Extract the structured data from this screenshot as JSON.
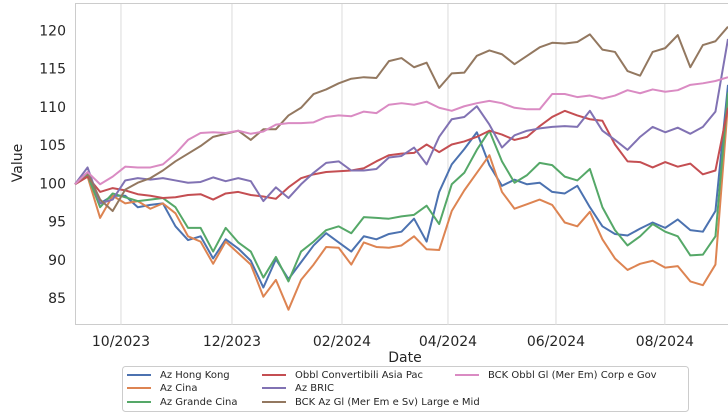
{
  "chart_data": {
    "type": "line",
    "xlabel": "Date",
    "ylabel": "Value",
    "x": [
      0,
      1,
      2,
      3,
      4,
      5,
      6,
      7,
      8,
      9,
      10,
      11,
      12,
      13,
      14,
      15,
      16,
      17,
      18,
      19,
      20,
      21,
      22,
      23,
      24,
      25,
      26,
      27,
      28,
      29,
      30,
      31,
      32,
      33,
      34,
      35,
      36,
      37,
      38,
      39,
      40,
      41,
      42,
      43,
      44,
      45,
      46,
      47,
      48,
      49,
      50,
      51,
      52
    ],
    "xlim": [
      0,
      52
    ],
    "xticks": [
      {
        "value": 3.66,
        "label": "10/2023"
      },
      {
        "value": 12.5,
        "label": "12/2023"
      },
      {
        "value": 21.26,
        "label": "02/2024"
      },
      {
        "value": 29.7,
        "label": "04/2024"
      },
      {
        "value": 38.3,
        "label": "06/2024"
      },
      {
        "value": 46.97,
        "label": "08/2024"
      }
    ],
    "ylim": [
      81.6,
      123.7
    ],
    "yticks": [
      85,
      90,
      95,
      100,
      105,
      110,
      115,
      120
    ],
    "grid": "x",
    "series": [
      {
        "name": "Az Hong Kong",
        "color": "#4c72b0",
        "values": [
          100,
          101.5,
          97.5,
          98.5,
          98.5,
          97,
          97.3,
          97.5,
          94.5,
          92.7,
          93.2,
          90.3,
          92.8,
          91.6,
          90,
          86.5,
          90.2,
          87.6,
          89.8,
          92,
          93.6,
          92.4,
          91.2,
          93.2,
          92.8,
          93.5,
          93.8,
          95.5,
          92.5,
          99,
          102.6,
          104.6,
          106.8,
          102.5,
          99.8,
          100.6,
          100,
          100.2,
          99,
          98.8,
          99.8,
          97,
          94.5,
          93.5,
          93.3,
          94.2,
          95,
          94.3,
          95.4,
          94,
          93.8,
          96.5,
          113
        ]
      },
      {
        "name": "Az Cina",
        "color": "#dd8452",
        "values": [
          100,
          101,
          95.6,
          98.5,
          97.5,
          97.8,
          96.8,
          97.5,
          96.2,
          93.2,
          92.5,
          89.6,
          92.5,
          91,
          89.5,
          85.3,
          87.5,
          83.6,
          87.5,
          89.5,
          91.8,
          91.7,
          89.5,
          92.4,
          91.8,
          91.7,
          92,
          93.2,
          91.5,
          91.4,
          96.5,
          99.2,
          101.5,
          103.8,
          99,
          96.8,
          97.4,
          98,
          97.3,
          95,
          94.5,
          96.4,
          92.8,
          90.3,
          88.8,
          89.6,
          90,
          89.1,
          89.3,
          87.3,
          86.8,
          89.5,
          110.5
        ]
      },
      {
        "name": "Az Grande Cina",
        "color": "#55a868",
        "values": [
          100,
          101.2,
          97,
          98.8,
          98.3,
          97.8,
          98,
          98.2,
          97,
          94.3,
          94.3,
          91.2,
          94.3,
          92.4,
          91.2,
          87.8,
          90.5,
          87.3,
          91.2,
          92.5,
          94,
          94.5,
          93.6,
          95.7,
          95.6,
          95.5,
          95.8,
          96,
          97.2,
          94.8,
          100,
          101.5,
          104.5,
          107,
          103,
          100.2,
          101.2,
          102.8,
          102.5,
          101,
          100.5,
          102,
          97,
          94,
          92,
          93.2,
          94.8,
          93.8,
          93.2,
          90.7,
          90.8,
          93.2,
          112
        ]
      },
      {
        "name": "Obbl Convertibili Asia Pac",
        "color": "#c44e52",
        "values": [
          100,
          101,
          99,
          99.5,
          99.2,
          98.7,
          98.5,
          98.2,
          98.3,
          98.6,
          98.7,
          98,
          98.8,
          99,
          98.6,
          98.4,
          98.1,
          99.6,
          100.8,
          101.3,
          101.6,
          101.7,
          101.8,
          102.1,
          103,
          103.8,
          104,
          104.1,
          105.2,
          104.2,
          105.2,
          105.6,
          106.2,
          107,
          106.5,
          105.8,
          106.2,
          107.6,
          108.8,
          109.6,
          109,
          108.5,
          108.3,
          105.2,
          103,
          102.9,
          102.2,
          102.9,
          102.3,
          102.7,
          101.3,
          101.8,
          110
        ]
      },
      {
        "name": "Az BRIC",
        "color": "#8172b3",
        "values": [
          100,
          102.2,
          97.5,
          98,
          100.5,
          100.8,
          100.6,
          100.8,
          100.5,
          100.2,
          100.3,
          100.9,
          100.4,
          100.8,
          100.4,
          97.8,
          99.6,
          98.2,
          100,
          101.5,
          102.8,
          103,
          101.8,
          101.8,
          102,
          103.5,
          103.7,
          104.8,
          102.6,
          106.2,
          108.5,
          108.8,
          110.2,
          107.8,
          104.8,
          106.4,
          107,
          107.3,
          107.5,
          107.6,
          107.5,
          109.6,
          107,
          105.8,
          104.5,
          106.2,
          107.5,
          106.8,
          107.4,
          106.6,
          107.5,
          109.5,
          119
        ]
      },
      {
        "name": "BCK Az Gl (Mer Em e Sv) Large e Mid",
        "color": "#937860",
        "values": [
          100,
          101.5,
          98,
          96.5,
          99.3,
          100.2,
          100.8,
          101.8,
          103,
          104,
          105,
          106.2,
          106.6,
          107,
          105.8,
          107.2,
          107.2,
          109,
          110,
          111.8,
          112.4,
          113.2,
          113.8,
          114,
          113.9,
          116.1,
          116.5,
          115.3,
          115.9,
          112.6,
          114.5,
          114.6,
          116.8,
          117.5,
          117,
          115.7,
          116.8,
          117.9,
          118.5,
          118.4,
          118.6,
          119.6,
          117.6,
          117.3,
          114.8,
          114.2,
          117.3,
          117.8,
          119.5,
          115.3,
          118.2,
          118.7,
          120.6
        ]
      },
      {
        "name": "BCK Obbl Gl (Mer Em) Corp e Gov",
        "color": "#da8bc3",
        "values": [
          100,
          101.6,
          100,
          101,
          102.3,
          102.2,
          102.2,
          102.6,
          104,
          105.8,
          106.7,
          106.8,
          106.7,
          107,
          106.6,
          106.9,
          107.8,
          108,
          108,
          108.1,
          108.8,
          109,
          108.9,
          109.5,
          109.3,
          110.4,
          110.6,
          110.4,
          110.8,
          110,
          109.6,
          110.2,
          110.6,
          110.9,
          110.6,
          110,
          109.8,
          109.8,
          111.8,
          111.8,
          111.4,
          111.6,
          111.2,
          111.6,
          112.3,
          111.9,
          112.4,
          112.1,
          112.3,
          113,
          113.2,
          113.5,
          114
        ]
      }
    ]
  }
}
